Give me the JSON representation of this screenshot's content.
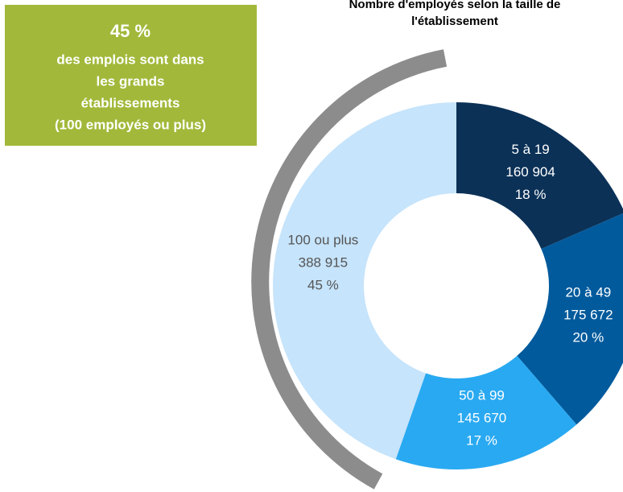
{
  "chart_data": {
    "type": "donut",
    "title": "Nombre d'employés selon la taille de l'établissement",
    "title_lines": [
      "Nombre d'employés selon la taille de",
      "l'établissement"
    ],
    "categories": [
      "5 à 19",
      "20 à 49",
      "50 à 99",
      "100 ou plus"
    ],
    "values": [
      160904,
      175672,
      145670,
      388915
    ],
    "value_labels": [
      "160 904",
      "175 672",
      "145 670",
      "388 915"
    ],
    "percentages": [
      18,
      20,
      17,
      45
    ],
    "percentage_labels": [
      "18 %",
      "20 %",
      "17 %",
      "45 %"
    ],
    "colors": [
      "#0b3157",
      "#015a9c",
      "#29a9f1",
      "#c6e4fb"
    ],
    "label_colors": [
      "#ffffff",
      "#ffffff",
      "#ffffff",
      "#555555"
    ],
    "callout": {
      "headline": "45 %",
      "lines": [
        "des emplois sont dans",
        "les grands",
        "établissements",
        "(100 employés ou plus)"
      ],
      "color": "#a2b83a"
    }
  }
}
